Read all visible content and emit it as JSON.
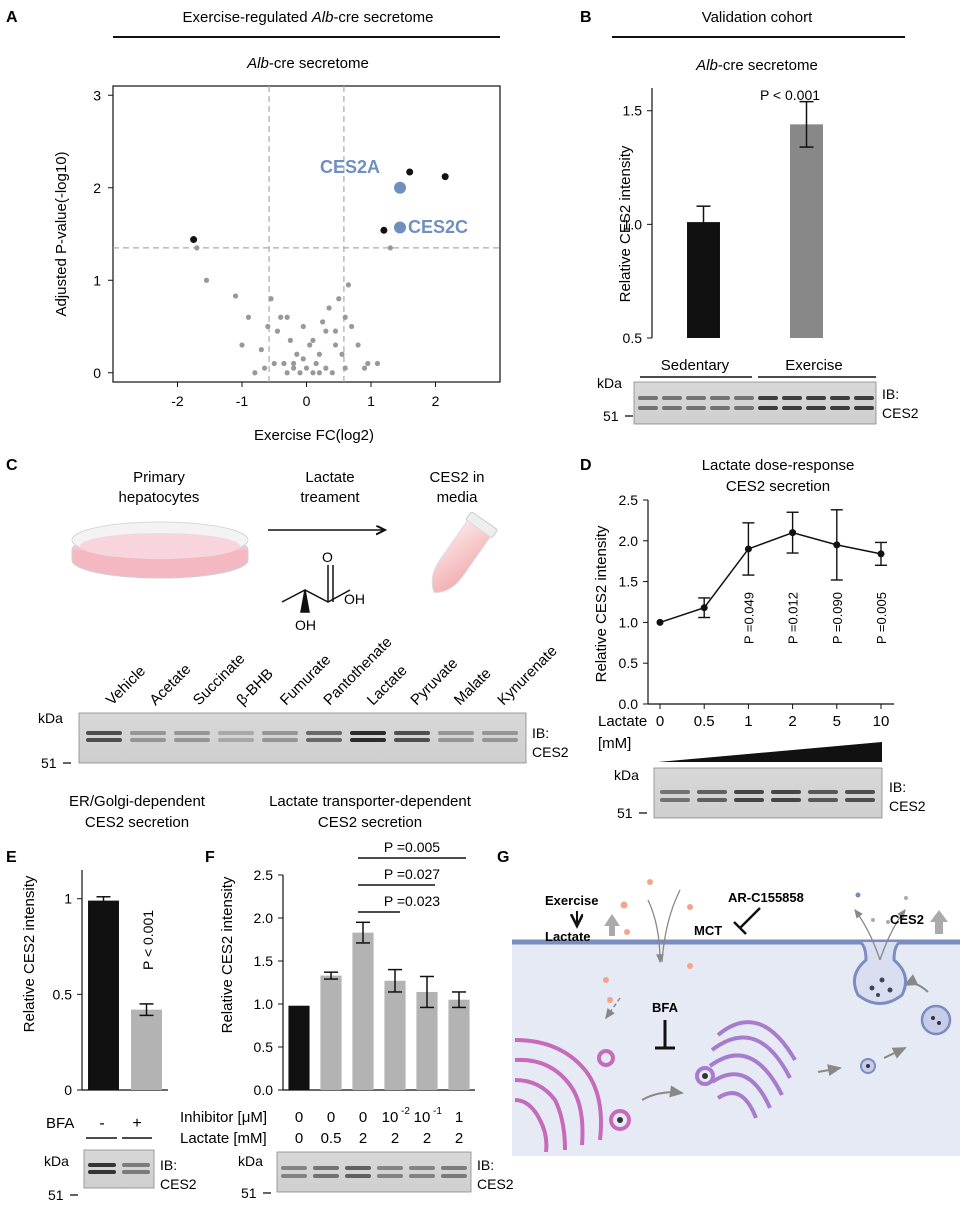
{
  "panels": {
    "A": "A",
    "B": "B",
    "C": "C",
    "D": "D",
    "E": "E",
    "F": "F",
    "G": "G"
  },
  "colors": {
    "black": "#111111",
    "gray": "#999999",
    "blue": "#6f8fbf",
    "bar_dark": "#111111",
    "bar_gray": "#888888",
    "bar_light": "#b3b3b3",
    "cell": "#b3bfe6",
    "membrane": "#7a8cc0",
    "organelle": "#c66bb9",
    "golgi": "#a87ccc",
    "dots": "#f4a48c"
  },
  "panelA": {
    "header_pre": "Exercise-regulated ",
    "header_italic": "Alb",
    "header_post": "-cre secretome",
    "subtitle_italic": "Alb",
    "subtitle_post": "-cre secretome",
    "labels": {
      "ces2a": "CES2A",
      "ces2c": "CES2C"
    },
    "chart_data": {
      "type": "scatter",
      "title": "Alb-cre secretome",
      "xlabel": "Exercise FC(log2)",
      "ylabel": "Adjusted P-value(-log10)",
      "xlim": [
        -3.0,
        3.0
      ],
      "ylim": [
        -0.1,
        3.1
      ],
      "xticks": [
        -2,
        -1,
        0,
        1,
        2
      ],
      "yticks": [
        0,
        1,
        2,
        3
      ],
      "threshold_x": [
        -0.58,
        0.58
      ],
      "threshold_y": 1.35,
      "highlight": [
        {
          "name": "CES2A",
          "x": 1.45,
          "y": 2.0
        },
        {
          "name": "CES2C",
          "x": 1.45,
          "y": 1.57
        }
      ],
      "significant": [
        [
          -1.75,
          1.44
        ],
        [
          1.6,
          2.17
        ],
        [
          2.15,
          2.12
        ],
        [
          1.2,
          1.54
        ]
      ],
      "other": [
        [
          -1.7,
          1.35
        ],
        [
          -1.55,
          1.0
        ],
        [
          -1.1,
          0.83
        ],
        [
          -0.9,
          0.6
        ],
        [
          -1.0,
          0.3
        ],
        [
          -0.7,
          0.25
        ],
        [
          -0.6,
          0.5
        ],
        [
          -0.55,
          0.8
        ],
        [
          -0.45,
          0.45
        ],
        [
          -0.35,
          0.1
        ],
        [
          -0.3,
          0.0
        ],
        [
          -0.25,
          0.35
        ],
        [
          -0.2,
          0.05
        ],
        [
          -0.15,
          0.2
        ],
        [
          -0.1,
          0.0
        ],
        [
          -0.05,
          0.15
        ],
        [
          0.0,
          0.05
        ],
        [
          0.05,
          0.3
        ],
        [
          0.1,
          0.0
        ],
        [
          0.15,
          0.1
        ],
        [
          0.2,
          0.2
        ],
        [
          0.25,
          0.55
        ],
        [
          0.3,
          0.05
        ],
        [
          0.35,
          0.7
        ],
        [
          0.4,
          0.0
        ],
        [
          0.45,
          0.45
        ],
        [
          0.5,
          0.8
        ],
        [
          0.55,
          0.2
        ],
        [
          0.6,
          0.6
        ],
        [
          0.7,
          0.5
        ],
        [
          0.8,
          0.3
        ],
        [
          0.9,
          0.05
        ],
        [
          0.95,
          0.1
        ],
        [
          1.1,
          0.1
        ],
        [
          1.3,
          1.35
        ],
        [
          -0.4,
          0.6
        ],
        [
          -0.5,
          0.1
        ],
        [
          -0.65,
          0.05
        ],
        [
          -0.8,
          0.0
        ],
        [
          0.65,
          0.95
        ],
        [
          0.45,
          0.3
        ],
        [
          0.3,
          0.45
        ],
        [
          -0.3,
          0.6
        ],
        [
          0.2,
          0.0
        ],
        [
          -0.2,
          0.1
        ],
        [
          0.1,
          0.35
        ],
        [
          -0.05,
          0.5
        ],
        [
          0.6,
          0.05
        ]
      ]
    }
  },
  "panelB": {
    "header": "Validation cohort",
    "subtitle_italic": "Alb",
    "subtitle_post": "-cre secretome",
    "pvalue": "P < 0.001",
    "groups": [
      "Sedentary",
      "Exercise"
    ],
    "kda": "kDa",
    "marker": "51",
    "ib_line1": "IB:",
    "ib_line2": "CES2",
    "chart_data": {
      "type": "bar",
      "categories": [
        "Sedentary",
        "Exercise"
      ],
      "values": [
        1.01,
        1.44
      ],
      "errors": [
        0.07,
        0.1
      ],
      "ylabel": "Relative CES2 intensity",
      "ylim": [
        0.5,
        1.6
      ],
      "yticks": [
        "0.5",
        "1.0",
        "1.5"
      ]
    }
  },
  "panelC": {
    "step1": [
      "Primary",
      "hepatocytes"
    ],
    "step2": [
      "Lactate",
      "treament"
    ],
    "step3": [
      "CES2 in",
      "media"
    ],
    "mol_o": "O",
    "mol_oh1": "OH",
    "mol_oh2": "OH",
    "lanes": [
      "Vehicle",
      "Acetate",
      "Succinate",
      "β-BHB",
      "Fumurate",
      "Pantothenate",
      "Lactate",
      "Pyruvate",
      "Malate",
      "Kynurenate"
    ],
    "kda": "kDa",
    "marker": "51",
    "ib_line1": "IB:",
    "ib_line2": "CES2",
    "caption_left": [
      "ER/Golgi-dependent",
      "CES2 secretion"
    ],
    "caption_right": [
      "Lactate transporter-dependent",
      "CES2 secretion"
    ]
  },
  "panelD": {
    "title": [
      "Lactate dose-response",
      "CES2 secretion"
    ],
    "pvalues": [
      "P =0.049",
      "P =0.012",
      "P =0.090",
      "P =0.005"
    ],
    "xrow_label": [
      "Lactate",
      "[mM]"
    ],
    "kda": "kDa",
    "marker": "51",
    "ib_line1": "IB:",
    "ib_line2": "CES2",
    "chart_data": {
      "type": "line",
      "categories": [
        "0",
        "0.5",
        "1",
        "2",
        "5",
        "10"
      ],
      "values": [
        1.0,
        1.18,
        1.9,
        2.1,
        1.95,
        1.84
      ],
      "errors": [
        0.0,
        0.12,
        0.32,
        0.25,
        0.43,
        0.14
      ],
      "ylabel": "Relative CES2 intensity",
      "ylim": [
        0.0,
        2.5
      ],
      "yticks": [
        "0.0",
        "0.5",
        "1.0",
        "1.5",
        "2.0",
        "2.5"
      ]
    }
  },
  "panelE": {
    "pvalue": "P < 0.001",
    "bfa_label": "BFA",
    "bfa_values": [
      "-",
      "+"
    ],
    "kda": "kDa",
    "marker": "51",
    "ib_line1": "IB:",
    "ib_line2": "CES2",
    "chart_data": {
      "type": "bar",
      "categories": [
        "-",
        "+"
      ],
      "values": [
        0.99,
        0.42
      ],
      "errors": [
        0.02,
        0.03
      ],
      "ylabel": "Relative CES2 intensity",
      "ylim": [
        0.0,
        1.15
      ],
      "yticks": [
        "0",
        "0.5",
        "1"
      ]
    }
  },
  "panelF": {
    "pvalues": [
      "P =0.005",
      "P =0.027",
      "P =0.023"
    ],
    "inhibitor_label": "Inhibitor [μM]",
    "lactate_label": "Lactate [mM]",
    "inhibitor": [
      "0",
      "0",
      "0",
      "10",
      "10",
      "1"
    ],
    "inhibitor_exp": [
      "",
      "",
      "",
      "-2",
      "-1",
      ""
    ],
    "lactate": [
      "0",
      "0.5",
      "2",
      "2",
      "2",
      "2"
    ],
    "kda": "kDa",
    "marker": "51",
    "ib_line1": "IB:",
    "ib_line2": "CES2",
    "chart_data": {
      "type": "bar",
      "categories": [
        "0/0",
        "0/0.5",
        "0/2",
        "0.01/2",
        "0.1/2",
        "1/2"
      ],
      "values": [
        0.98,
        1.33,
        1.83,
        1.27,
        1.14,
        1.05
      ],
      "errors": [
        0.0,
        0.04,
        0.12,
        0.13,
        0.18,
        0.09
      ],
      "ylabel": "Relative CES2 intensity",
      "ylim": [
        0.0,
        2.5
      ],
      "yticks": [
        "0.0",
        "0.5",
        "1.0",
        "1.5",
        "2.0",
        "2.5"
      ]
    }
  },
  "panelG": {
    "exercise": "Exercise",
    "lactate": "Lactate",
    "inhibitor": "AR-C155858",
    "mct": "MCT",
    "bfa": "BFA",
    "ces2": "CES2"
  }
}
